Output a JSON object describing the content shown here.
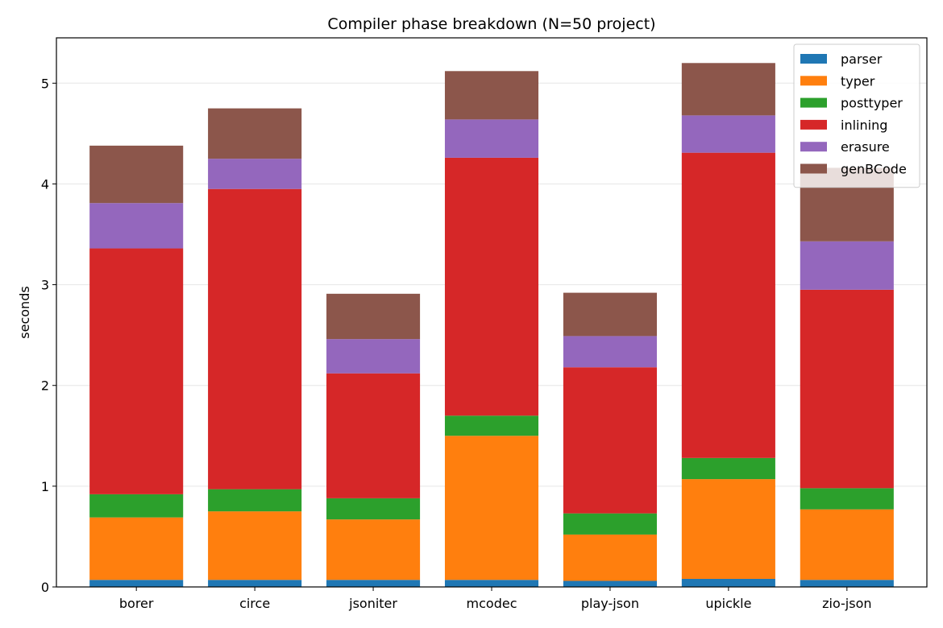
{
  "chart_data": {
    "type": "bar",
    "stacked": true,
    "title": "Compiler phase breakdown (N=50 project)",
    "xlabel": "",
    "ylabel": "seconds",
    "ylim": [
      0,
      5.45
    ],
    "yticks": [
      "0",
      "1",
      "2",
      "3",
      "4",
      "5"
    ],
    "grid": "horizontal",
    "legend_position": "top-right",
    "categories": [
      "borer",
      "circe",
      "jsoniter",
      "mcodec",
      "play-json",
      "upickle",
      "zio-json"
    ],
    "series": [
      {
        "name": "parser",
        "color": "#1f77b4",
        "values": [
          0.07,
          0.07,
          0.07,
          0.07,
          0.06,
          0.08,
          0.07
        ]
      },
      {
        "name": "typer",
        "color": "#ff7f0e",
        "values": [
          0.62,
          0.68,
          0.6,
          1.43,
          0.46,
          0.99,
          0.7
        ]
      },
      {
        "name": "posttyper",
        "color": "#2ca02c",
        "values": [
          0.23,
          0.22,
          0.21,
          0.2,
          0.21,
          0.21,
          0.21
        ]
      },
      {
        "name": "inlining",
        "color": "#d62728",
        "values": [
          2.44,
          2.98,
          1.24,
          2.56,
          1.45,
          3.03,
          1.97
        ]
      },
      {
        "name": "erasure",
        "color": "#9467bd",
        "values": [
          0.45,
          0.3,
          0.34,
          0.38,
          0.31,
          0.37,
          0.48
        ]
      },
      {
        "name": "genBCode",
        "color": "#8c564b",
        "values": [
          0.57,
          0.5,
          0.45,
          0.48,
          0.43,
          0.52,
          0.73
        ]
      }
    ]
  }
}
